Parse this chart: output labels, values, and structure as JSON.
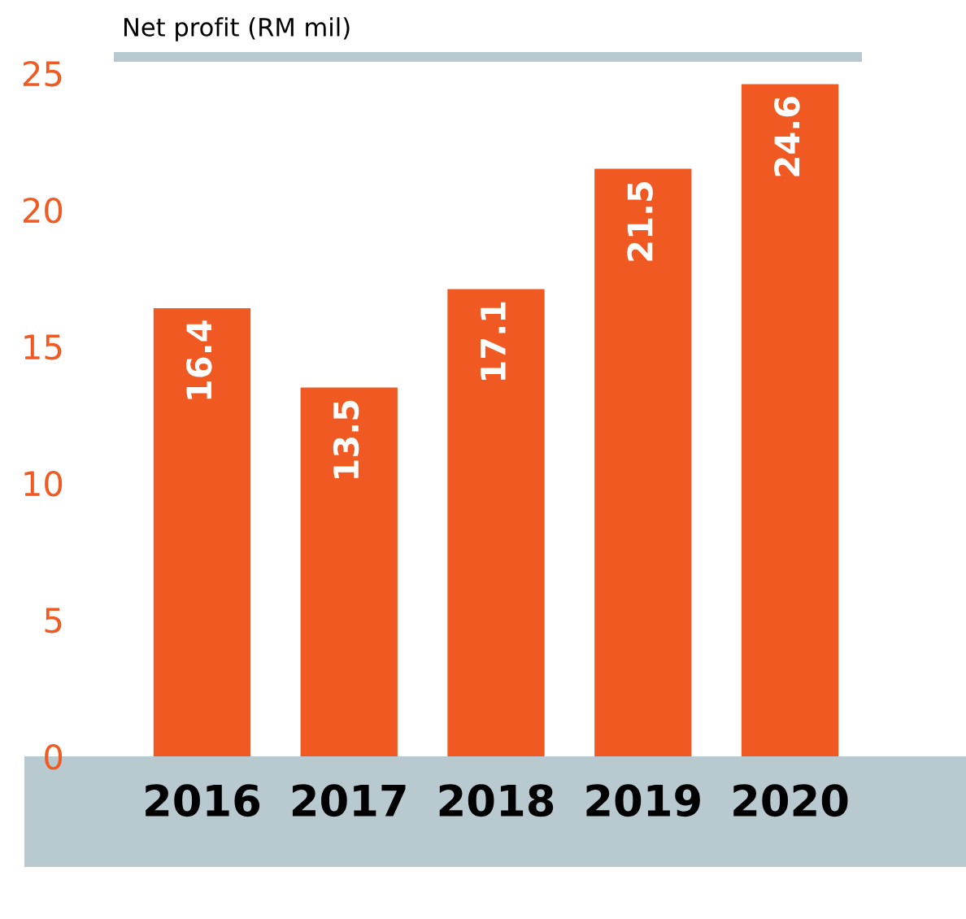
{
  "chart_data": {
    "type": "bar",
    "title": "Net profit (RM mil)",
    "categories": [
      "2016",
      "2017",
      "2018",
      "2019",
      "2020"
    ],
    "values": [
      16.4,
      13.5,
      17.1,
      21.5,
      24.6
    ],
    "color": "#f05a22",
    "ylim": [
      0,
      25
    ],
    "yticks": [
      0,
      5,
      10,
      15,
      20,
      25
    ],
    "data_labels": true,
    "grid": false,
    "legend": false
  }
}
